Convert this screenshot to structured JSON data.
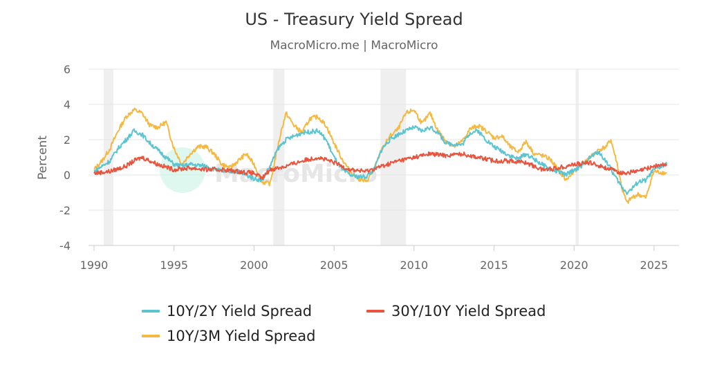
{
  "chart_data": {
    "type": "line",
    "title": "US - Treasury Yield Spread",
    "subtitle": "MacroMicro.me | MacroMicro",
    "watermark": "MacroMicro",
    "xlabel": "",
    "ylabel": "Percent",
    "xlim": [
      1989.8,
      2026.3
    ],
    "ylim": [
      -4,
      6
    ],
    "x_ticks": [
      "1990",
      "1995",
      "2000",
      "2005",
      "2010",
      "2015",
      "2020",
      "2025"
    ],
    "y_ticks": [
      "6",
      "4",
      "2",
      "0",
      "-2",
      "-4"
    ],
    "grid": "horizontal",
    "legend_position": "bottom",
    "recession_bands": [
      [
        1990.6,
        1991.2
      ],
      [
        2001.2,
        2001.9
      ],
      [
        2007.9,
        2009.5
      ],
      [
        2020.1,
        2020.3
      ]
    ],
    "series": [
      {
        "name": "10Y/3M Yield Spread",
        "color": "#f5b942",
        "points": [
          [
            1990,
            0.3
          ],
          [
            1990.5,
            0.8
          ],
          [
            1991,
            1.5
          ],
          [
            1991.5,
            2.5
          ],
          [
            1992,
            3.3
          ],
          [
            1992.5,
            3.7
          ],
          [
            1993,
            3.5
          ],
          [
            1993.5,
            2.8
          ],
          [
            1994,
            2.7
          ],
          [
            1994.5,
            3.0
          ],
          [
            1995,
            1.5
          ],
          [
            1995.5,
            0.6
          ],
          [
            1996,
            1.2
          ],
          [
            1996.5,
            1.6
          ],
          [
            1997,
            1.6
          ],
          [
            1997.5,
            1.2
          ],
          [
            1998,
            0.6
          ],
          [
            1998.5,
            0.4
          ],
          [
            1999,
            0.8
          ],
          [
            1999.5,
            1.2
          ],
          [
            2000,
            0.6
          ],
          [
            2000.5,
            -0.4
          ],
          [
            2001,
            -0.5
          ],
          [
            2001.3,
            0.8
          ],
          [
            2001.7,
            2.5
          ],
          [
            2002,
            3.5
          ],
          [
            2002.5,
            2.8
          ],
          [
            2003,
            2.4
          ],
          [
            2003.5,
            3.2
          ],
          [
            2004,
            3.3
          ],
          [
            2004.5,
            2.8
          ],
          [
            2005,
            1.8
          ],
          [
            2005.5,
            0.9
          ],
          [
            2006,
            0.2
          ],
          [
            2006.5,
            -0.2
          ],
          [
            2007,
            -0.4
          ],
          [
            2007.5,
            0.3
          ],
          [
            2008,
            1.5
          ],
          [
            2008.5,
            2.2
          ],
          [
            2009,
            2.6
          ],
          [
            2009.5,
            3.5
          ],
          [
            2010,
            3.7
          ],
          [
            2010.5,
            2.9
          ],
          [
            2011,
            3.5
          ],
          [
            2011.5,
            2.5
          ],
          [
            2012,
            1.9
          ],
          [
            2012.5,
            1.6
          ],
          [
            2013,
            1.9
          ],
          [
            2013.5,
            2.6
          ],
          [
            2014,
            2.8
          ],
          [
            2014.5,
            2.5
          ],
          [
            2015,
            2.1
          ],
          [
            2015.5,
            2.2
          ],
          [
            2016,
            1.6
          ],
          [
            2016.5,
            1.3
          ],
          [
            2017,
            1.9
          ],
          [
            2017.5,
            1.2
          ],
          [
            2018,
            1.1
          ],
          [
            2018.5,
            0.9
          ],
          [
            2019,
            0.3
          ],
          [
            2019.5,
            -0.3
          ],
          [
            2020,
            0.2
          ],
          [
            2020.5,
            0.6
          ],
          [
            2021,
            1.0
          ],
          [
            2021.5,
            1.4
          ],
          [
            2022,
            1.6
          ],
          [
            2022.3,
            2.0
          ],
          [
            2022.7,
            0.6
          ],
          [
            2023,
            -0.8
          ],
          [
            2023.3,
            -1.6
          ],
          [
            2023.6,
            -1.3
          ],
          [
            2024,
            -1.1
          ],
          [
            2024.5,
            -1.3
          ],
          [
            2024.8,
            -0.3
          ],
          [
            2025,
            0.2
          ],
          [
            2025.8,
            0.1
          ]
        ]
      },
      {
        "name": "10Y/2Y Yield Spread",
        "color": "#5bc4d0",
        "points": [
          [
            1990,
            0.2
          ],
          [
            1991,
            0.8
          ],
          [
            1991.5,
            1.5
          ],
          [
            1992,
            2.0
          ],
          [
            1992.5,
            2.5
          ],
          [
            1993,
            2.3
          ],
          [
            1993.5,
            1.8
          ],
          [
            1994,
            1.4
          ],
          [
            1994.5,
            1.0
          ],
          [
            1995,
            0.6
          ],
          [
            1995.5,
            0.5
          ],
          [
            1996,
            0.6
          ],
          [
            1997,
            0.5
          ],
          [
            1998,
            0.2
          ],
          [
            1999,
            0.2
          ],
          [
            2000,
            -0.2
          ],
          [
            2000.5,
            -0.3
          ],
          [
            2001,
            0.5
          ],
          [
            2001.5,
            1.5
          ],
          [
            2002,
            2.0
          ],
          [
            2003,
            2.4
          ],
          [
            2004,
            2.5
          ],
          [
            2004.5,
            2.0
          ],
          [
            2005,
            1.0
          ],
          [
            2005.5,
            0.3
          ],
          [
            2006,
            0.0
          ],
          [
            2006.5,
            -0.1
          ],
          [
            2007,
            -0.1
          ],
          [
            2007.5,
            0.3
          ],
          [
            2008,
            1.5
          ],
          [
            2008.5,
            2.0
          ],
          [
            2009,
            2.3
          ],
          [
            2010,
            2.7
          ],
          [
            2010.5,
            2.5
          ],
          [
            2011,
            2.7
          ],
          [
            2011.5,
            2.4
          ],
          [
            2012,
            1.8
          ],
          [
            2013,
            1.7
          ],
          [
            2013.5,
            2.4
          ],
          [
            2014,
            2.5
          ],
          [
            2014.5,
            2.0
          ],
          [
            2015,
            1.6
          ],
          [
            2016,
            1.1
          ],
          [
            2016.5,
            0.9
          ],
          [
            2017,
            1.2
          ],
          [
            2018,
            0.6
          ],
          [
            2018.5,
            0.3
          ],
          [
            2019,
            0.2
          ],
          [
            2019.5,
            0.0
          ],
          [
            2020,
            0.3
          ],
          [
            2020.5,
            0.5
          ],
          [
            2021,
            1.0
          ],
          [
            2021.5,
            1.3
          ],
          [
            2022,
            0.8
          ],
          [
            2022.5,
            0.0
          ],
          [
            2023,
            -0.7
          ],
          [
            2023.3,
            -1.0
          ],
          [
            2023.6,
            -0.8
          ],
          [
            2024,
            -0.4
          ],
          [
            2024.5,
            -0.3
          ],
          [
            2024.8,
            0.1
          ],
          [
            2025,
            0.3
          ],
          [
            2025.8,
            0.6
          ]
        ]
      },
      {
        "name": "30Y/10Y Yield Spread",
        "color": "#e8553e",
        "points": [
          [
            1990,
            0.1
          ],
          [
            1991,
            0.2
          ],
          [
            1992,
            0.5
          ],
          [
            1992.5,
            0.8
          ],
          [
            1993,
            1.0
          ],
          [
            1994,
            0.6
          ],
          [
            1995,
            0.3
          ],
          [
            1996,
            0.4
          ],
          [
            1997,
            0.3
          ],
          [
            1998,
            0.3
          ],
          [
            1999,
            0.2
          ],
          [
            2000,
            0.1
          ],
          [
            2000.5,
            -0.2
          ],
          [
            2001,
            0.3
          ],
          [
            2002,
            0.5
          ],
          [
            2003,
            0.8
          ],
          [
            2004,
            1.0
          ],
          [
            2005,
            0.7
          ],
          [
            2006,
            0.3
          ],
          [
            2007,
            0.2
          ],
          [
            2008,
            0.5
          ],
          [
            2009,
            0.8
          ],
          [
            2010,
            1.0
          ],
          [
            2011,
            1.2
          ],
          [
            2012,
            1.1
          ],
          [
            2013,
            1.2
          ],
          [
            2014,
            1.0
          ],
          [
            2015,
            0.8
          ],
          [
            2016,
            0.8
          ],
          [
            2017,
            0.7
          ],
          [
            2018,
            0.3
          ],
          [
            2019,
            0.4
          ],
          [
            2020,
            0.6
          ],
          [
            2021,
            0.7
          ],
          [
            2022,
            0.4
          ],
          [
            2023,
            0.1
          ],
          [
            2024,
            0.2
          ],
          [
            2025,
            0.5
          ],
          [
            2025.8,
            0.6
          ]
        ]
      }
    ]
  }
}
